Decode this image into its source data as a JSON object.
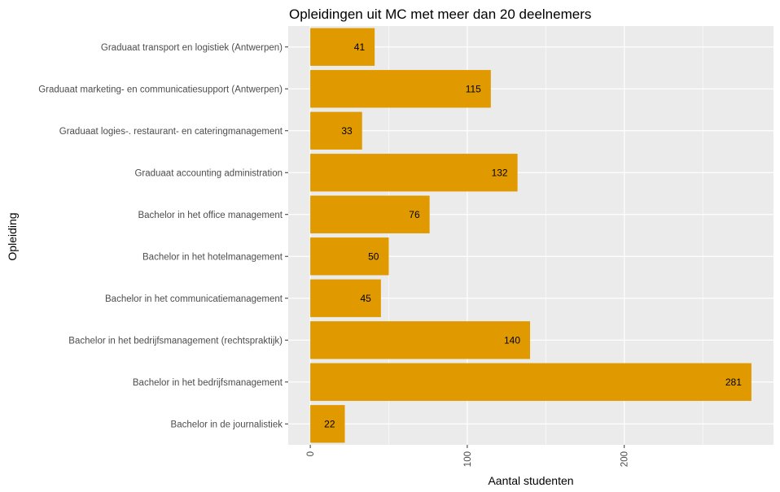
{
  "chart_data": {
    "type": "bar",
    "orientation": "horizontal",
    "title": "Opleidingen uit MC met meer dan 20 deelnemers",
    "xlabel": "Aantal studenten",
    "ylabel": "Opleiding",
    "categories": [
      "Graduaat transport en logistiek (Antwerpen)",
      "Graduaat marketing- en communicatiesupport (Antwerpen)",
      "Graduaat logies-. restaurant- en cateringmanagement",
      "Graduaat accounting administration",
      "Bachelor in het office management",
      "Bachelor in het hotelmanagement",
      "Bachelor in het communicatiemanagement",
      "Bachelor in het bedrijfsmanagement (rechtspraktijk)",
      "Bachelor in het bedrijfsmanagement",
      "Bachelor in de journalistiek"
    ],
    "values": [
      41,
      115,
      33,
      132,
      76,
      50,
      45,
      140,
      281,
      22
    ],
    "data_labels": [
      "41",
      "115",
      "33",
      "132",
      "76",
      "50",
      "45",
      "140",
      "281",
      "22"
    ],
    "x_ticks": [
      0,
      100,
      200
    ],
    "x_tick_labels": [
      "0",
      "100",
      "200"
    ],
    "xlim": [
      -14.05,
      295.05
    ],
    "grid": true,
    "legend": "none",
    "colors": {
      "bar": "#E09A00",
      "panel_background": "#EBEBEB",
      "grid_line": "#FFFFFF",
      "tick_text": "#4D4D4D",
      "title_text": "#000000"
    }
  }
}
